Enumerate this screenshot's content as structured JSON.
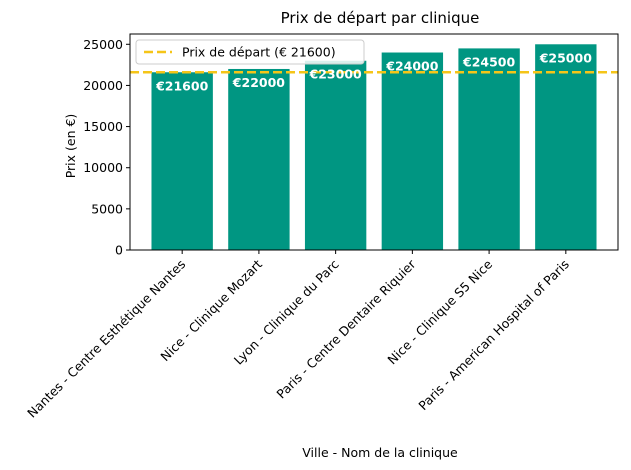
{
  "chart_data": {
    "type": "bar",
    "title": "Prix de départ par clinique",
    "xlabel": "Ville - Nom de la clinique",
    "ylabel": "Prix (en €)",
    "categories": [
      "Nantes - Centre Esthétique Nantes",
      "Nice - Clinique Mozart",
      "Lyon - Clinique du Parc",
      "Paris - Centre Dentaire Riquier",
      "Nice - Clinique S5 Nice",
      "Paris - American Hospital of Paris"
    ],
    "values": [
      21600,
      22000,
      23000,
      24000,
      24500,
      25000
    ],
    "bar_labels": [
      "€21600",
      "€22000",
      "€23000",
      "€24000",
      "€24500",
      "€25000"
    ],
    "y_ticks": [
      0,
      5000,
      10000,
      15000,
      20000,
      25000
    ],
    "ylim": [
      0,
      26250
    ],
    "reference_line": {
      "value": 21600,
      "label": "Prix de départ (€ 21600)",
      "style": "dashed"
    },
    "legend_placement": "top-left",
    "grid": false,
    "colors": {
      "bar": "#009682",
      "bar_label": "#ffffff",
      "reference_line": "#f5c518",
      "axis": "#000000"
    }
  }
}
